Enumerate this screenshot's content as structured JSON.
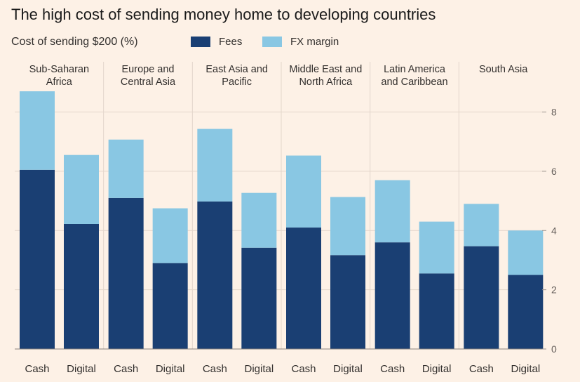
{
  "chart_data": {
    "type": "bar",
    "stacked": true,
    "title": "The high cost of sending money home to developing countries",
    "subtitle": "Cost of sending $200 (%)",
    "groups": [
      {
        "name": "Sub-Saharan Africa",
        "lines": [
          "Sub-Saharan",
          "Africa"
        ]
      },
      {
        "name": "Europe and Central Asia",
        "lines": [
          "Europe and",
          "Central Asia"
        ]
      },
      {
        "name": "East Asia and Pacific",
        "lines": [
          "East Asia and",
          "Pacific"
        ]
      },
      {
        "name": "Middle East and North Africa",
        "lines": [
          "Middle East and",
          "North Africa"
        ]
      },
      {
        "name": "Latin America and Caribbean",
        "lines": [
          "Latin America",
          "and Caribbean"
        ]
      },
      {
        "name": "South Asia",
        "lines": [
          "South Asia"
        ]
      }
    ],
    "categories": [
      "Cash",
      "Digital",
      "Cash",
      "Digital",
      "Cash",
      "Digital",
      "Cash",
      "Digital",
      "Cash",
      "Digital",
      "Cash",
      "Digital"
    ],
    "series": [
      {
        "name": "Fees",
        "color": "#1a3f73",
        "values": [
          6.05,
          4.22,
          5.1,
          2.9,
          4.98,
          3.42,
          4.1,
          3.17,
          3.6,
          2.55,
          3.47,
          2.5
        ]
      },
      {
        "name": "FX margin",
        "color": "#89c7e3",
        "values": [
          2.65,
          2.33,
          1.97,
          1.85,
          2.45,
          1.85,
          2.43,
          1.96,
          2.1,
          1.75,
          1.43,
          1.5
        ]
      }
    ],
    "ylim": [
      0,
      8.7
    ],
    "yticks": [
      0,
      2,
      4,
      6,
      8
    ],
    "grid": true,
    "y_axis_side": "right",
    "legend_position": "top"
  }
}
